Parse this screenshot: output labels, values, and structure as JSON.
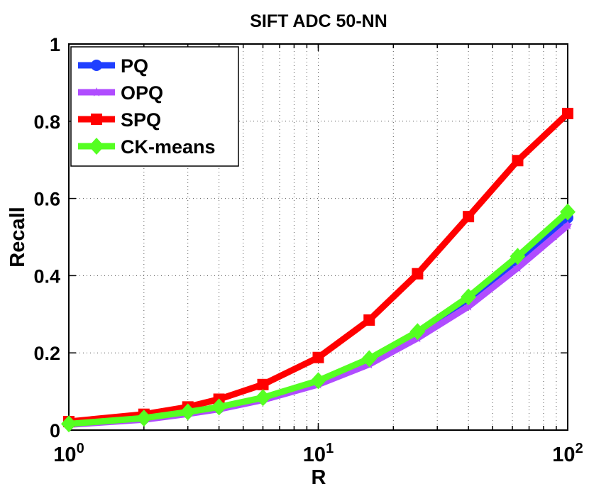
{
  "chart_data": {
    "type": "line",
    "title": "SIFT ADC 50-NN",
    "xlabel": "R",
    "ylabel": "Recall",
    "x_scale": "log",
    "xlim": [
      1,
      100
    ],
    "ylim": [
      0,
      1
    ],
    "grid": true,
    "legend_position": "top-left",
    "x_ticks": [
      {
        "value": 1,
        "base": "10",
        "exp": "0"
      },
      {
        "value": 10,
        "base": "10",
        "exp": "1"
      },
      {
        "value": 100,
        "base": "10",
        "exp": "2"
      }
    ],
    "y_ticks": [
      {
        "value": 0,
        "label": "0"
      },
      {
        "value": 0.2,
        "label": "0.2"
      },
      {
        "value": 0.4,
        "label": "0.4"
      },
      {
        "value": 0.6,
        "label": "0.6"
      },
      {
        "value": 0.8,
        "label": "0.8"
      },
      {
        "value": 1,
        "label": "1"
      }
    ],
    "x": [
      1,
      2,
      3,
      4,
      6,
      10,
      16,
      25,
      40,
      63,
      100
    ],
    "series": [
      {
        "name": "PQ",
        "color": "#1f3fff",
        "marker": "circle",
        "values": [
          0.016,
          0.03,
          0.046,
          0.058,
          0.083,
          0.125,
          0.18,
          0.248,
          0.335,
          0.437,
          0.55
        ]
      },
      {
        "name": "OPQ",
        "color": "#b04cff",
        "marker": "star",
        "values": [
          0.014,
          0.027,
          0.042,
          0.054,
          0.078,
          0.118,
          0.17,
          0.238,
          0.32,
          0.42,
          0.53
        ]
      },
      {
        "name": "SPQ",
        "color": "#ff0000",
        "marker": "square",
        "values": [
          0.022,
          0.041,
          0.06,
          0.08,
          0.118,
          0.188,
          0.285,
          0.405,
          0.553,
          0.698,
          0.82
        ]
      },
      {
        "name": "CK-means",
        "color": "#55ff22",
        "marker": "diamond",
        "values": [
          0.016,
          0.031,
          0.047,
          0.06,
          0.084,
          0.128,
          0.185,
          0.255,
          0.345,
          0.45,
          0.565
        ]
      }
    ]
  }
}
